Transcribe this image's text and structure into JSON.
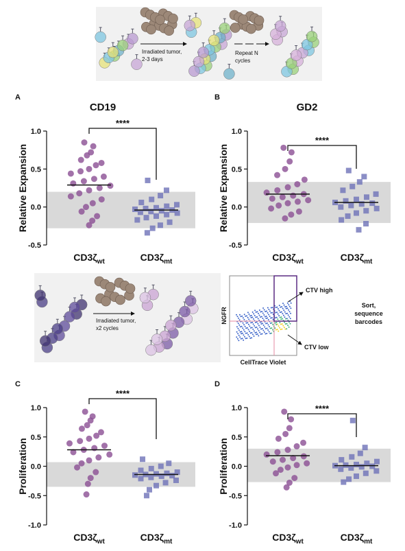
{
  "chart_data": [
    {
      "type": "strip",
      "panel": "A",
      "title": "CD19",
      "ylabel": "Relative Expansion",
      "ylim": [
        -0.5,
        1
      ],
      "yticks": [
        {
          "value": 1,
          "label": "1.0"
        },
        {
          "value": 0.5,
          "label": "0.5"
        },
        {
          "value": 0,
          "label": "0.0"
        },
        {
          "value": -0.5,
          "label": "-0.5"
        }
      ],
      "categories": [
        "CD3ζ",
        "CD3ζ"
      ],
      "category_subscripts": [
        "wt",
        "mt"
      ],
      "null_band": [
        -0.28,
        0.2
      ],
      "significance": "****",
      "series": [
        {
          "marker": "circle",
          "color": "#8b4f93",
          "mean": 0.29,
          "values": [
            0.85,
            0.8,
            0.72,
            0.68,
            0.62,
            0.58,
            0.55,
            0.5,
            0.47,
            0.44,
            0.4,
            0.37,
            0.34,
            0.31,
            0.28,
            0.25,
            0.22,
            0.18,
            0.14,
            0.1,
            0.05,
            0.0,
            -0.06,
            -0.12,
            -0.18,
            -0.24
          ]
        },
        {
          "marker": "square",
          "color": "#6e72b8",
          "mean": -0.04,
          "values": [
            0.35,
            0.22,
            0.15,
            0.1,
            0.06,
            0.03,
            0.01,
            -0.01,
            -0.02,
            -0.03,
            -0.04,
            -0.05,
            -0.06,
            -0.07,
            -0.08,
            -0.1,
            -0.12,
            -0.14,
            -0.17,
            -0.2,
            -0.24,
            -0.28,
            -0.34
          ]
        }
      ]
    },
    {
      "type": "strip",
      "panel": "B",
      "title": "GD2",
      "ylabel": "Relative Expansion",
      "ylim": [
        -0.5,
        1
      ],
      "yticks": [
        {
          "value": 1,
          "label": "1.0"
        },
        {
          "value": 0.5,
          "label": "0.5"
        },
        {
          "value": 0,
          "label": "0.0"
        },
        {
          "value": -0.5,
          "label": "-0.5"
        }
      ],
      "categories": [
        "CD3ζ",
        "CD3ζ"
      ],
      "category_subscripts": [
        "wt",
        "mt"
      ],
      "null_band": [
        -0.21,
        0.33
      ],
      "significance": "****",
      "series": [
        {
          "marker": "circle",
          "color": "#8b4f93",
          "mean": 0.17,
          "values": [
            0.78,
            0.72,
            0.6,
            0.5,
            0.42,
            0.36,
            0.3,
            0.26,
            0.22,
            0.19,
            0.17,
            0.15,
            0.13,
            0.11,
            0.09,
            0.07,
            0.05,
            0.02,
            -0.02,
            -0.06,
            -0.1,
            -0.15
          ]
        },
        {
          "marker": "square",
          "color": "#6e72b8",
          "mean": 0.06,
          "values": [
            0.48,
            0.4,
            0.33,
            0.27,
            0.22,
            0.17,
            0.13,
            0.1,
            0.08,
            0.06,
            0.05,
            0.04,
            0.02,
            0.0,
            -0.02,
            -0.05,
            -0.08,
            -0.12,
            -0.17,
            -0.22,
            -0.3
          ]
        }
      ]
    },
    {
      "type": "strip",
      "panel": "C",
      "ylabel": "Proliferation",
      "ylim": [
        -1,
        1
      ],
      "yticks": [
        {
          "value": 1,
          "label": "1.0"
        },
        {
          "value": 0.5,
          "label": "0.5"
        },
        {
          "value": 0,
          "label": "0.0"
        },
        {
          "value": -0.5,
          "label": "-0.5"
        },
        {
          "value": -1,
          "label": "-1.0"
        }
      ],
      "categories": [
        "CD3ζ",
        "CD3ζ"
      ],
      "category_subscripts": [
        "wt",
        "mt"
      ],
      "null_band": [
        -0.35,
        0.07
      ],
      "significance": "****",
      "series": [
        {
          "marker": "circle",
          "color": "#8b4f93",
          "mean": 0.28,
          "values": [
            0.93,
            0.85,
            0.78,
            0.7,
            0.64,
            0.58,
            0.52,
            0.47,
            0.43,
            0.39,
            0.35,
            0.31,
            0.28,
            0.24,
            0.2,
            0.15,
            0.1,
            0.05,
            -0.02,
            -0.1,
            -0.2,
            -0.3,
            -0.48
          ]
        },
        {
          "marker": "square",
          "color": "#6e72b8",
          "mean": -0.14,
          "values": [
            0.12,
            0.05,
            0.0,
            -0.04,
            -0.07,
            -0.1,
            -0.12,
            -0.13,
            -0.14,
            -0.15,
            -0.16,
            -0.17,
            -0.19,
            -0.21,
            -0.24,
            -0.28,
            -0.33,
            -0.4,
            -0.5
          ]
        }
      ]
    },
    {
      "type": "strip",
      "panel": "D",
      "ylabel": "Proliferation",
      "ylim": [
        -1,
        1
      ],
      "yticks": [
        {
          "value": 1,
          "label": "1.0"
        },
        {
          "value": 0.5,
          "label": "0.5"
        },
        {
          "value": 0,
          "label": "0.0"
        },
        {
          "value": -0.5,
          "label": "-0.5"
        },
        {
          "value": -1,
          "label": "-1.0"
        }
      ],
      "categories": [
        "CD3ζ",
        "CD3ζ"
      ],
      "category_subscripts": [
        "wt",
        "mt"
      ],
      "null_band": [
        -0.27,
        0.3
      ],
      "significance": "****",
      "series": [
        {
          "marker": "circle",
          "color": "#8b4f93",
          "mean": 0.18,
          "values": [
            0.93,
            0.8,
            0.65,
            0.55,
            0.47,
            0.4,
            0.34,
            0.28,
            0.24,
            0.2,
            0.17,
            0.14,
            0.11,
            0.08,
            0.05,
            0.02,
            -0.02,
            -0.06,
            -0.12,
            -0.2,
            -0.28,
            -0.36
          ]
        },
        {
          "marker": "square",
          "color": "#6e72b8",
          "mean": 0.01,
          "values": [
            0.78,
            0.32,
            0.22,
            0.16,
            0.11,
            0.08,
            0.05,
            0.03,
            0.02,
            0.01,
            0.0,
            -0.01,
            -0.03,
            -0.05,
            -0.08,
            -0.12,
            -0.17,
            -0.22,
            -0.27
          ]
        }
      ]
    }
  ],
  "schematic_top": {
    "step1": [
      "Irradiated tumor,",
      "2-3 days"
    ],
    "step2": [
      "Repeat N",
      "cycles"
    ]
  },
  "schematic_middle": {
    "step1": [
      "Irradiated tumor,",
      "x2 cycles"
    ],
    "flow_y": "NGFR",
    "flow_x": "CellTrace Violet",
    "gate_high": "CTV high",
    "gate_low": "CTV low",
    "sort": [
      "Sort,",
      "sequence",
      "barcodes"
    ]
  }
}
